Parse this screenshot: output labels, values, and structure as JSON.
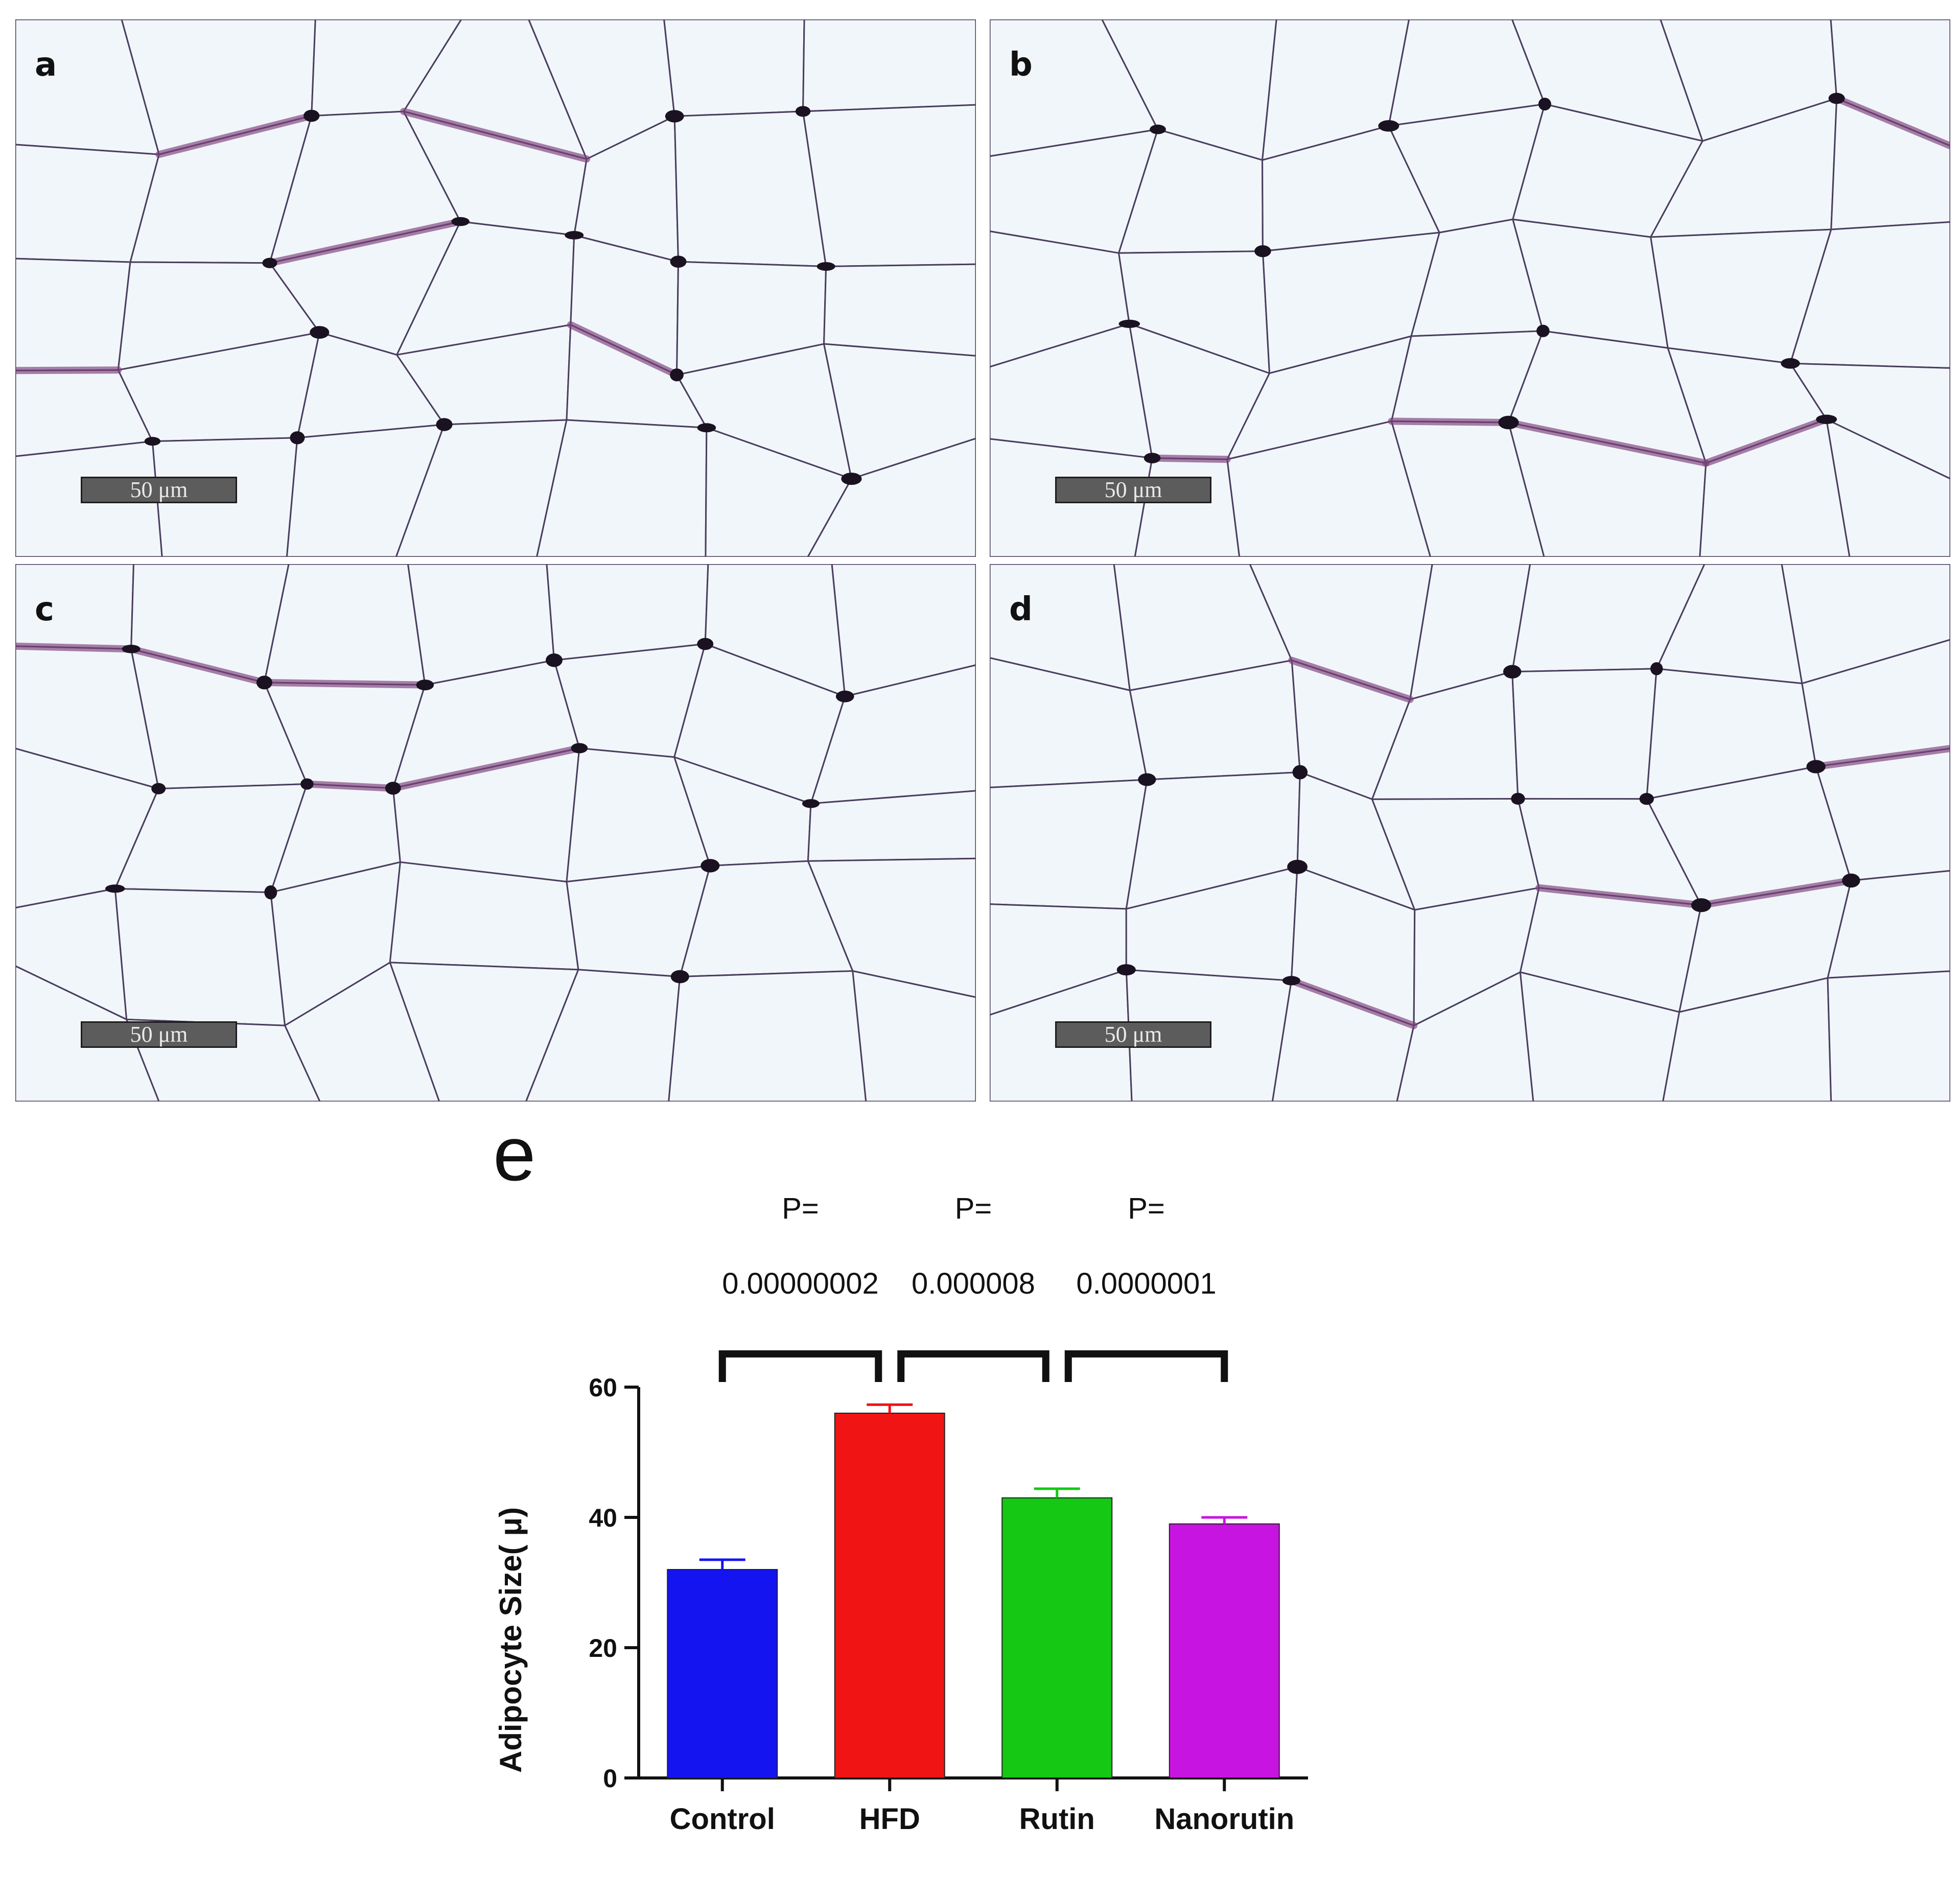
{
  "panels": [
    {
      "label": "a",
      "scalebar": "50 μm"
    },
    {
      "label": "b",
      "scalebar": "50 μm"
    },
    {
      "label": "c",
      "scalebar": "50 μm"
    },
    {
      "label": "d",
      "scalebar": "50 μm"
    }
  ],
  "chart_label": "e",
  "stain_colors": {
    "background": "#f4f8fb",
    "membrane": "#4a3d5e",
    "nuclei": "#1a1220",
    "stroma": "#7b3f7a"
  },
  "chart_data": {
    "type": "bar",
    "categories": [
      "Control",
      "HFD",
      "Rutin",
      "Nanorutin"
    ],
    "values": [
      32,
      56,
      43,
      39
    ],
    "errors": [
      1.5,
      1.3,
      1.4,
      1.0
    ],
    "colors": [
      "#1414f0",
      "#f01414",
      "#14c814",
      "#c814e0"
    ],
    "ylabel": "Adipocyte Size( μ)",
    "ylim": [
      0,
      60
    ],
    "yticks": [
      "0",
      "20",
      "40",
      "60"
    ],
    "grid": false,
    "comparisons": [
      {
        "from": "Control",
        "to": "HFD",
        "p_label": "P=",
        "p_value": "0.00000002"
      },
      {
        "from": "HFD",
        "to": "Rutin",
        "p_label": "P=",
        "p_value": "0.000008"
      },
      {
        "from": "Rutin",
        "to": "Nanorutin",
        "p_label": "P=",
        "p_value": "0.0000001"
      }
    ]
  }
}
